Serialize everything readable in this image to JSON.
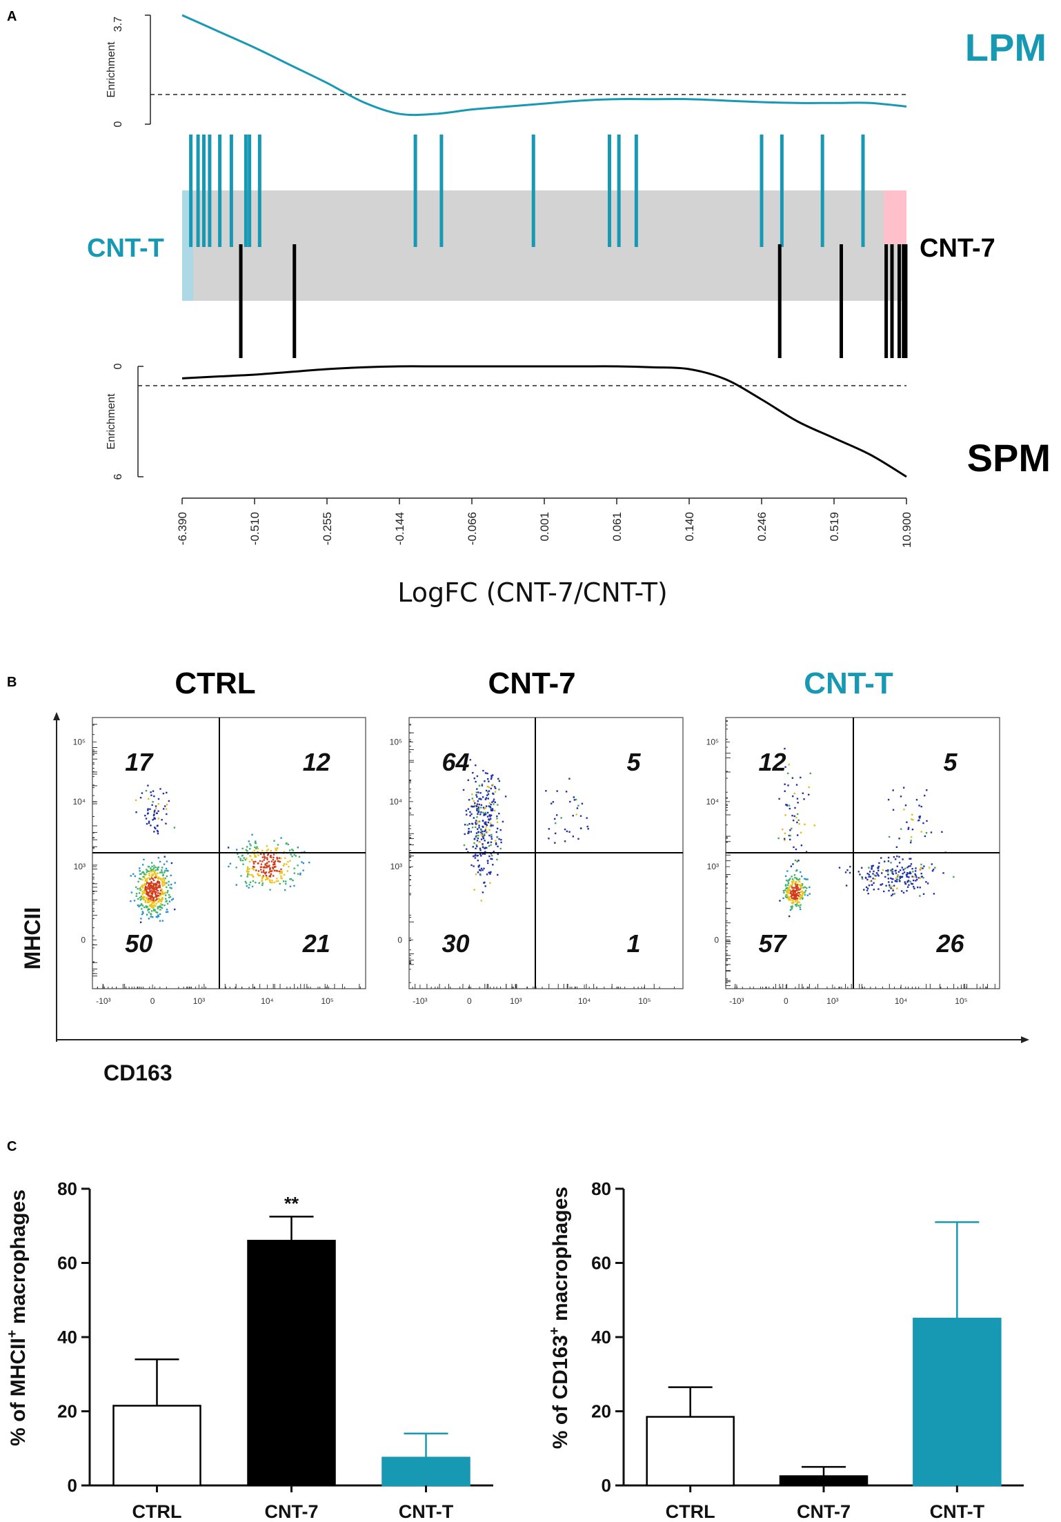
{
  "panels": {
    "a": "A",
    "b": "B",
    "c": "C"
  },
  "colors": {
    "teal": "#1799b3",
    "black": "#000000",
    "gray_band": "#d3d3d3",
    "light_blue": "#add8e6",
    "pink": "#ffc0cb"
  },
  "chart_data": [
    {
      "type": "barcode",
      "panel": "A",
      "top_label": "LPM",
      "bottom_label": "SPM",
      "left_group": "CNT-T",
      "right_group": "CNT-7",
      "xlabel": "LogFC (CNT-7/CNT-T)",
      "x_ticks": [
        "-6.390",
        "-0.510",
        "-0.255",
        "-0.144",
        "-0.066",
        "0.001",
        "0.061",
        "0.140",
        "0.246",
        "0.519",
        "10.900"
      ],
      "top_enrichment": {
        "ylabel": "Enrichment",
        "ylim": [
          0,
          3.7
        ],
        "tick_labels": [
          "0",
          "3.7"
        ],
        "baseline": 1.0,
        "curve_x": [
          0,
          0.05,
          0.1,
          0.15,
          0.2,
          0.25,
          0.3,
          0.35,
          0.4,
          0.45,
          0.5,
          0.55,
          0.6,
          0.65,
          0.7,
          0.75,
          0.8,
          0.85,
          0.9,
          0.95,
          1
        ],
        "curve_y": [
          3.7,
          3.15,
          2.6,
          2.0,
          1.4,
          0.75,
          0.35,
          0.35,
          0.5,
          0.6,
          0.7,
          0.8,
          0.85,
          0.85,
          0.85,
          0.8,
          0.75,
          0.72,
          0.72,
          0.72,
          0.6
        ]
      },
      "bottom_enrichment": {
        "ylabel": "Enrichment",
        "ylim": [
          0,
          6
        ],
        "tick_labels": [
          "0",
          "6"
        ],
        "baseline": 1.0,
        "curve_x": [
          0,
          0.05,
          0.1,
          0.15,
          0.2,
          0.25,
          0.3,
          0.35,
          0.4,
          0.45,
          0.5,
          0.55,
          0.6,
          0.65,
          0.7,
          0.75,
          0.8,
          0.85,
          0.9,
          0.95,
          1
        ],
        "curve_y": [
          0.65,
          0.55,
          0.45,
          0.3,
          0.15,
          0.05,
          0.0,
          0.0,
          0.0,
          0.0,
          0.0,
          0.0,
          0.0,
          0.05,
          0.15,
          0.7,
          1.8,
          3.0,
          3.9,
          4.8,
          6.0
        ]
      },
      "lpm_genes_pos": [
        0.012,
        0.022,
        0.03,
        0.038,
        0.052,
        0.068,
        0.088,
        0.093,
        0.107,
        0.322,
        0.358,
        0.485,
        0.59,
        0.603,
        0.627,
        0.8,
        0.828,
        0.884,
        0.94
      ],
      "spm_genes_pos": [
        0.081,
        0.155,
        0.825,
        0.91,
        0.972,
        0.98,
        0.99,
        0.996,
        0.999
      ]
    },
    {
      "type": "scatter",
      "panel": "B",
      "subtype": "flow-cytometry",
      "xlabel": "CD163",
      "ylabel": "MHCII",
      "y_ticks": [
        "10⁵",
        "10⁴",
        "10³",
        "0"
      ],
      "x_ticks": [
        "-10³",
        "0",
        "10³",
        "10⁴",
        "10⁵"
      ],
      "plots": [
        {
          "title": "CTRL",
          "title_color": "#000000",
          "quadrants": [
            "17",
            "12",
            "50",
            "21"
          ]
        },
        {
          "title": "CNT-7",
          "title_color": "#000000",
          "quadrants": [
            "64",
            "5",
            "30",
            "1"
          ]
        },
        {
          "title": "CNT-T",
          "title_color": "#1799b3",
          "quadrants": [
            "12",
            "5",
            "57",
            "26"
          ]
        }
      ]
    },
    {
      "type": "bar",
      "panel": "C-left",
      "ylabel": "% of MHCII+ macrophages",
      "ylabel_main": "% of MHCII",
      "ylabel_sup": "+",
      "ylabel_tail": " macrophages",
      "ylim": [
        0,
        80
      ],
      "yticks": [
        "0",
        "20",
        "40",
        "60",
        "80"
      ],
      "categories": [
        "CTRL",
        "CNT-7",
        "CNT-T"
      ],
      "values": [
        21.5,
        66,
        7.5
      ],
      "errors": [
        12.5,
        6.5,
        6.5
      ],
      "annotations": [
        "",
        "**",
        ""
      ]
    },
    {
      "type": "bar",
      "panel": "C-right",
      "ylabel": "% of CD163+ macrophages",
      "ylabel_main": "% of CD163",
      "ylabel_sup": "+",
      "ylabel_tail": " macrophages",
      "ylim": [
        0,
        80
      ],
      "yticks": [
        "0",
        "20",
        "40",
        "60",
        "80"
      ],
      "categories": [
        "CTRL",
        "CNT-7",
        "CNT-T"
      ],
      "values": [
        18.5,
        2.5,
        45
      ],
      "errors": [
        8,
        2.5,
        26
      ],
      "annotations": [
        "",
        "",
        ""
      ]
    }
  ]
}
